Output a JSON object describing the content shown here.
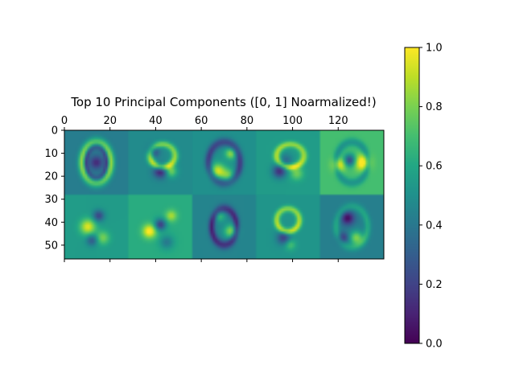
{
  "chart_data": [
    {
      "type": "heatmap",
      "title": "Top 10 Principal Components ([0, 1] Noarmalized!)",
      "xlabel": "",
      "ylabel": "",
      "image_size": {
        "width": 140,
        "height": 56
      },
      "grid_layout": {
        "rows": 2,
        "cols": 5,
        "tile_size": 28
      },
      "xlim": [
        0,
        140
      ],
      "ylim": [
        56,
        0
      ],
      "x_ticks": [
        0,
        20,
        40,
        60,
        80,
        100,
        120
      ],
      "x_ticks_position": "top",
      "y_ticks": [
        0,
        10,
        20,
        30,
        40,
        50
      ],
      "colormap": "viridis",
      "value_range": [
        0,
        1
      ],
      "components": [
        {
          "index": 1,
          "row": 0,
          "col": 0,
          "background": 0.42,
          "shape": "zero"
        },
        {
          "index": 2,
          "row": 0,
          "col": 1,
          "background": 0.48,
          "shape": "nine"
        },
        {
          "index": 3,
          "row": 0,
          "col": 2,
          "background": 0.5,
          "shape": "two"
        },
        {
          "index": 4,
          "row": 0,
          "col": 3,
          "background": 0.55,
          "shape": "five"
        },
        {
          "index": 5,
          "row": 0,
          "col": 4,
          "background": 0.7,
          "shape": "four"
        },
        {
          "index": 6,
          "row": 1,
          "col": 0,
          "background": 0.55,
          "shape": "loop"
        },
        {
          "index": 7,
          "row": 1,
          "col": 1,
          "background": 0.62,
          "shape": "three"
        },
        {
          "index": 8,
          "row": 1,
          "col": 2,
          "background": 0.45,
          "shape": "six"
        },
        {
          "index": 9,
          "row": 1,
          "col": 3,
          "background": 0.52,
          "shape": "seven"
        },
        {
          "index": 10,
          "row": 1,
          "col": 4,
          "background": 0.43,
          "shape": "eight"
        }
      ]
    },
    {
      "type": "colorbar",
      "colormap": "viridis",
      "range": [
        0,
        1
      ],
      "ticks": [
        0.0,
        0.2,
        0.4,
        0.6,
        0.8,
        1.0
      ],
      "tick_labels": [
        "0.0",
        "0.2",
        "0.4",
        "0.6",
        "0.8",
        "1.0"
      ]
    }
  ]
}
